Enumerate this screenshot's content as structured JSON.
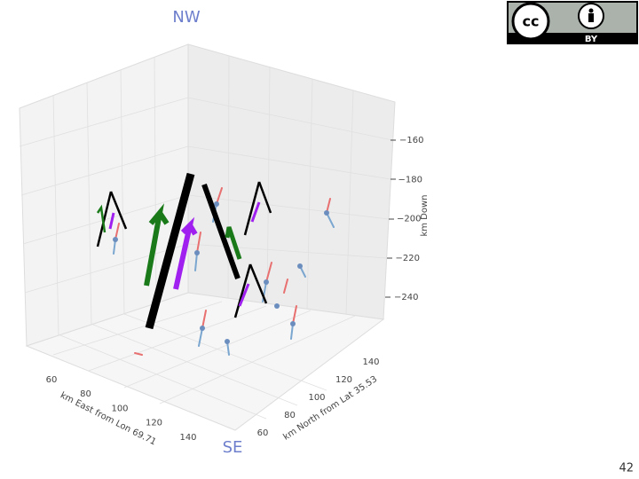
{
  "slide": {
    "orientation_top": "NW",
    "orientation_bottom": "SE",
    "license_badge": "BY",
    "page_number": "42",
    "figure": {
      "z_axis": {
        "label": "km Down",
        "ticks": [
          "−160",
          "−180",
          "−200",
          "−220",
          "−240"
        ]
      },
      "x_axis": {
        "label": "km East from Lon 69.71",
        "ticks": [
          "60",
          "80",
          "100",
          "120",
          "140"
        ]
      },
      "y_axis": {
        "label": "km North from Lat 35.53",
        "ticks": [
          "60",
          "80",
          "100",
          "120",
          "140"
        ]
      }
    }
  }
}
